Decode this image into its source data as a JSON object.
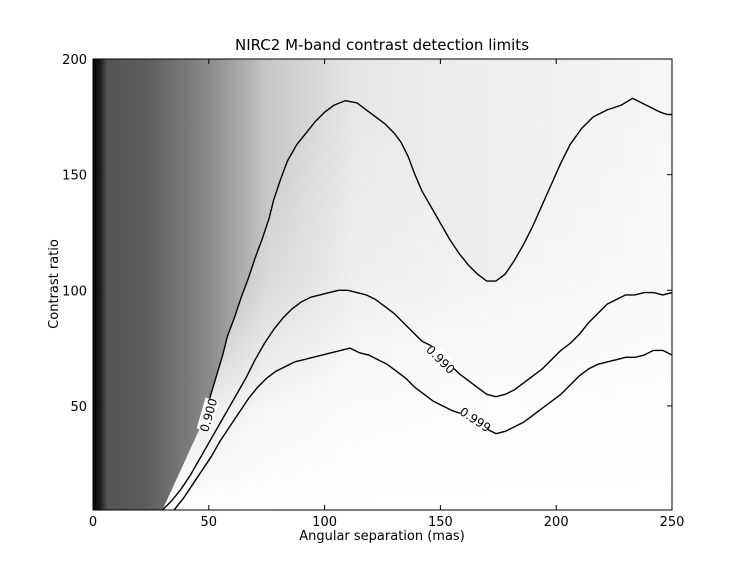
{
  "chart_data": {
    "type": "heatmap",
    "title": "NIRC2 M-band contrast detection limits",
    "xlabel": "Angular separation (mas)",
    "ylabel": "Contrast ratio",
    "xlim": [
      0,
      250
    ],
    "ylim": [
      5,
      200
    ],
    "xticks": [
      "0",
      "50",
      "100",
      "150",
      "200",
      "250"
    ],
    "yticks": [
      "50",
      "100",
      "150",
      "200"
    ],
    "grid": false,
    "colormap": "grayscale (dark = low value, white = high value)",
    "contours": [
      {
        "label": "0.900",
        "label_at": [
          50,
          46
        ],
        "points": [
          [
            46,
            40
          ],
          [
            48,
            45
          ],
          [
            50,
            52
          ],
          [
            53,
            62
          ],
          [
            56,
            72
          ],
          [
            58,
            80
          ],
          [
            61,
            88
          ],
          [
            64,
            97
          ],
          [
            67,
            105
          ],
          [
            70,
            114
          ],
          [
            73,
            122
          ],
          [
            76,
            131
          ],
          [
            78,
            139
          ],
          [
            81,
            148
          ],
          [
            84,
            156
          ],
          [
            88,
            163
          ],
          [
            92,
            168
          ],
          [
            96,
            173
          ],
          [
            100,
            177
          ],
          [
            104,
            180
          ],
          [
            109,
            182
          ],
          [
            114,
            181
          ],
          [
            118,
            178
          ],
          [
            122,
            175
          ],
          [
            126,
            172
          ],
          [
            130,
            168
          ],
          [
            133,
            164
          ],
          [
            136,
            158
          ],
          [
            139,
            150
          ],
          [
            142,
            143
          ],
          [
            146,
            136
          ],
          [
            150,
            129
          ],
          [
            154,
            122
          ],
          [
            158,
            116
          ],
          [
            162,
            111
          ],
          [
            166,
            107
          ],
          [
            170,
            104
          ],
          [
            174,
            104
          ],
          [
            178,
            107
          ],
          [
            182,
            113
          ],
          [
            186,
            120
          ],
          [
            190,
            128
          ],
          [
            194,
            137
          ],
          [
            198,
            146
          ],
          [
            202,
            155
          ],
          [
            206,
            163
          ],
          [
            211,
            170
          ],
          [
            216,
            175
          ],
          [
            222,
            178
          ],
          [
            228,
            180
          ],
          [
            233,
            183
          ],
          [
            237,
            181
          ],
          [
            241,
            179
          ],
          [
            245,
            177
          ],
          [
            248,
            176
          ],
          [
            250,
            176
          ]
        ]
      },
      {
        "label": "0.990",
        "label_at": [
          150,
          70
        ],
        "points": [
          [
            30,
            5
          ],
          [
            34,
            9
          ],
          [
            38,
            14
          ],
          [
            42,
            20
          ],
          [
            46,
            27
          ],
          [
            50,
            34
          ],
          [
            54,
            41
          ],
          [
            58,
            48
          ],
          [
            62,
            55
          ],
          [
            66,
            62
          ],
          [
            70,
            70
          ],
          [
            74,
            77
          ],
          [
            78,
            83
          ],
          [
            82,
            88
          ],
          [
            86,
            92
          ],
          [
            90,
            95
          ],
          [
            94,
            97
          ],
          [
            98,
            98
          ],
          [
            102,
            99
          ],
          [
            106,
            100
          ],
          [
            110,
            100
          ],
          [
            114,
            99
          ],
          [
            118,
            98
          ],
          [
            122,
            96
          ],
          [
            126,
            93
          ],
          [
            130,
            90
          ],
          [
            134,
            86
          ],
          [
            138,
            82
          ],
          [
            142,
            78
          ],
          [
            146,
            76
          ],
          [
            150,
            72
          ],
          [
            154,
            68
          ],
          [
            158,
            64
          ],
          [
            162,
            61
          ],
          [
            166,
            58
          ],
          [
            170,
            55
          ],
          [
            174,
            54
          ],
          [
            178,
            55
          ],
          [
            182,
            57
          ],
          [
            186,
            60
          ],
          [
            190,
            63
          ],
          [
            194,
            66
          ],
          [
            198,
            70
          ],
          [
            202,
            74
          ],
          [
            206,
            77
          ],
          [
            210,
            81
          ],
          [
            214,
            86
          ],
          [
            218,
            90
          ],
          [
            222,
            94
          ],
          [
            226,
            96
          ],
          [
            230,
            98
          ],
          [
            234,
            98
          ],
          [
            238,
            99
          ],
          [
            242,
            99
          ],
          [
            246,
            98
          ],
          [
            250,
            99
          ]
        ]
      },
      {
        "label": "0.999",
        "label_at": [
          165,
          44
        ],
        "points": [
          [
            35,
            5
          ],
          [
            39,
            10
          ],
          [
            43,
            16
          ],
          [
            47,
            22
          ],
          [
            51,
            28
          ],
          [
            55,
            35
          ],
          [
            59,
            41
          ],
          [
            63,
            47
          ],
          [
            67,
            53
          ],
          [
            71,
            58
          ],
          [
            75,
            62
          ],
          [
            79,
            65
          ],
          [
            83,
            67
          ],
          [
            87,
            69
          ],
          [
            91,
            70
          ],
          [
            95,
            71
          ],
          [
            99,
            72
          ],
          [
            103,
            73
          ],
          [
            107,
            74
          ],
          [
            111,
            75
          ],
          [
            115,
            73
          ],
          [
            119,
            72
          ],
          [
            123,
            70
          ],
          [
            127,
            68
          ],
          [
            131,
            65
          ],
          [
            135,
            62
          ],
          [
            139,
            58
          ],
          [
            143,
            55
          ],
          [
            147,
            52
          ],
          [
            151,
            50
          ],
          [
            155,
            48
          ],
          [
            158,
            47
          ],
          [
            161,
            46
          ],
          [
            164,
            45
          ],
          [
            167,
            43
          ],
          [
            170,
            40
          ],
          [
            174,
            38
          ],
          [
            178,
            39
          ],
          [
            182,
            41
          ],
          [
            186,
            43
          ],
          [
            190,
            46
          ],
          [
            194,
            49
          ],
          [
            198,
            52
          ],
          [
            202,
            55
          ],
          [
            206,
            59
          ],
          [
            210,
            63
          ],
          [
            214,
            66
          ],
          [
            218,
            68
          ],
          [
            222,
            69
          ],
          [
            226,
            70
          ],
          [
            230,
            71
          ],
          [
            234,
            71
          ],
          [
            238,
            72
          ],
          [
            242,
            74
          ],
          [
            246,
            74
          ],
          [
            250,
            72
          ]
        ]
      }
    ]
  }
}
